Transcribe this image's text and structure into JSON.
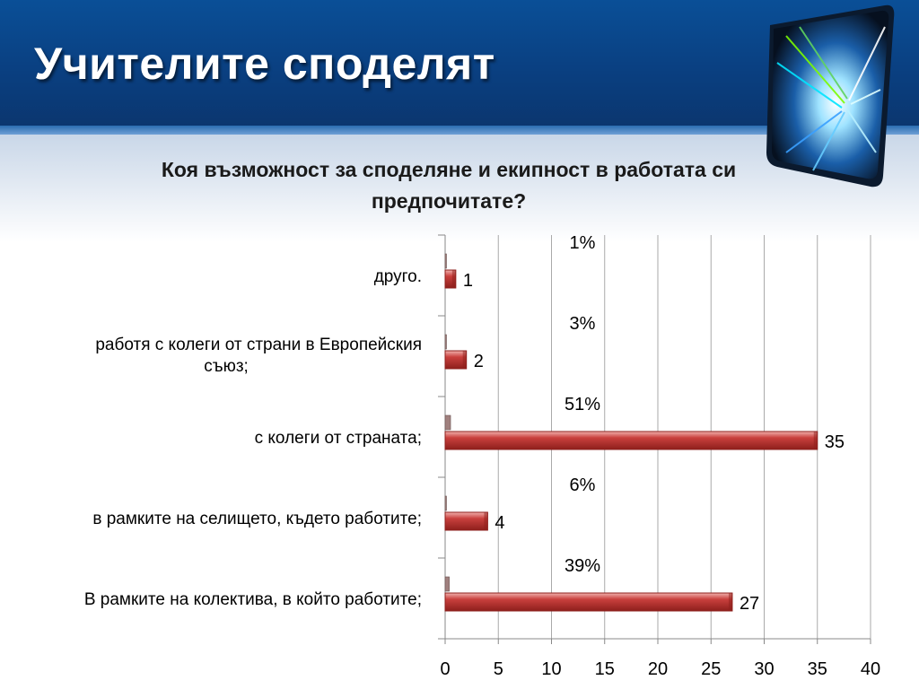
{
  "slide": {
    "title": "Учителите споделят"
  },
  "decoration": {
    "icon": "light-streak-cube-icon"
  },
  "colors": {
    "bar": "#c9403d",
    "bar_dark": "#8e1f1c",
    "bar_small": "#a0807e",
    "header": "#0a4f97",
    "grid": "#aaaaaa"
  },
  "chart_data": {
    "type": "bar",
    "orientation": "horizontal",
    "title": "Коя възможност за споделяне и екипност в работата си предпочитате?",
    "title_lines": [
      "Коя възможност за споделяне и екипност в работата си",
      "предпочитате?"
    ],
    "categories": [
      {
        "lines": [
          "друго."
        ]
      },
      {
        "lines": [
          "работя с колеги от страни в Европейския",
          "съюз;"
        ]
      },
      {
        "lines": [
          "с колеги от страната;"
        ]
      },
      {
        "lines": [
          "в рамките на селището, където работите;"
        ]
      },
      {
        "lines": [
          "В рамките на колектива, в който работите;"
        ]
      }
    ],
    "series": [
      {
        "values": [
          1,
          2,
          35,
          4,
          27
        ],
        "labels": [
          "1",
          "2",
          "35",
          "4",
          "27"
        ]
      },
      {
        "values": [
          0.01,
          0.03,
          0.51,
          0.06,
          0.39
        ],
        "labels": [
          "1%",
          "3%",
          "51%",
          "6%",
          "39%"
        ]
      }
    ],
    "xlim": [
      0,
      40
    ],
    "xticks": [
      0,
      5,
      10,
      15,
      20,
      25,
      30,
      35,
      40
    ],
    "xtick_labels": [
      "0",
      "5",
      "10",
      "15",
      "20",
      "25",
      "30",
      "35",
      "40"
    ],
    "grid": true,
    "legend": "none"
  }
}
